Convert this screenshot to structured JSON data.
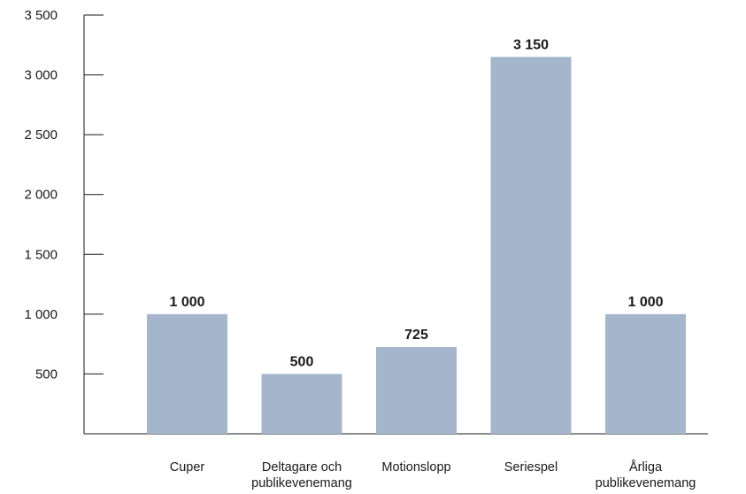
{
  "chart_data": {
    "type": "bar",
    "title": "",
    "xlabel": "",
    "ylabel": "",
    "ylim": [
      0,
      3500
    ],
    "yticks": [
      500,
      1000,
      1500,
      2000,
      2500,
      3000,
      3500
    ],
    "ytick_labels": [
      "500",
      "1 000",
      "1 500",
      "2 000",
      "2 500",
      "3 000",
      "3 500"
    ],
    "categories": [
      [
        "Cuper"
      ],
      [
        "Deltagare och",
        "publikevenemang"
      ],
      [
        "Motionslopp"
      ],
      [
        "Seriespel"
      ],
      [
        "Årliga",
        "publikevenemang"
      ]
    ],
    "values": [
      1000,
      500,
      725,
      3150,
      1000
    ],
    "value_labels": [
      "1 000",
      "500",
      "725",
      "3 150",
      "1 000"
    ],
    "bar_color": "#a3b6cc",
    "grid": false,
    "legend": "none"
  }
}
